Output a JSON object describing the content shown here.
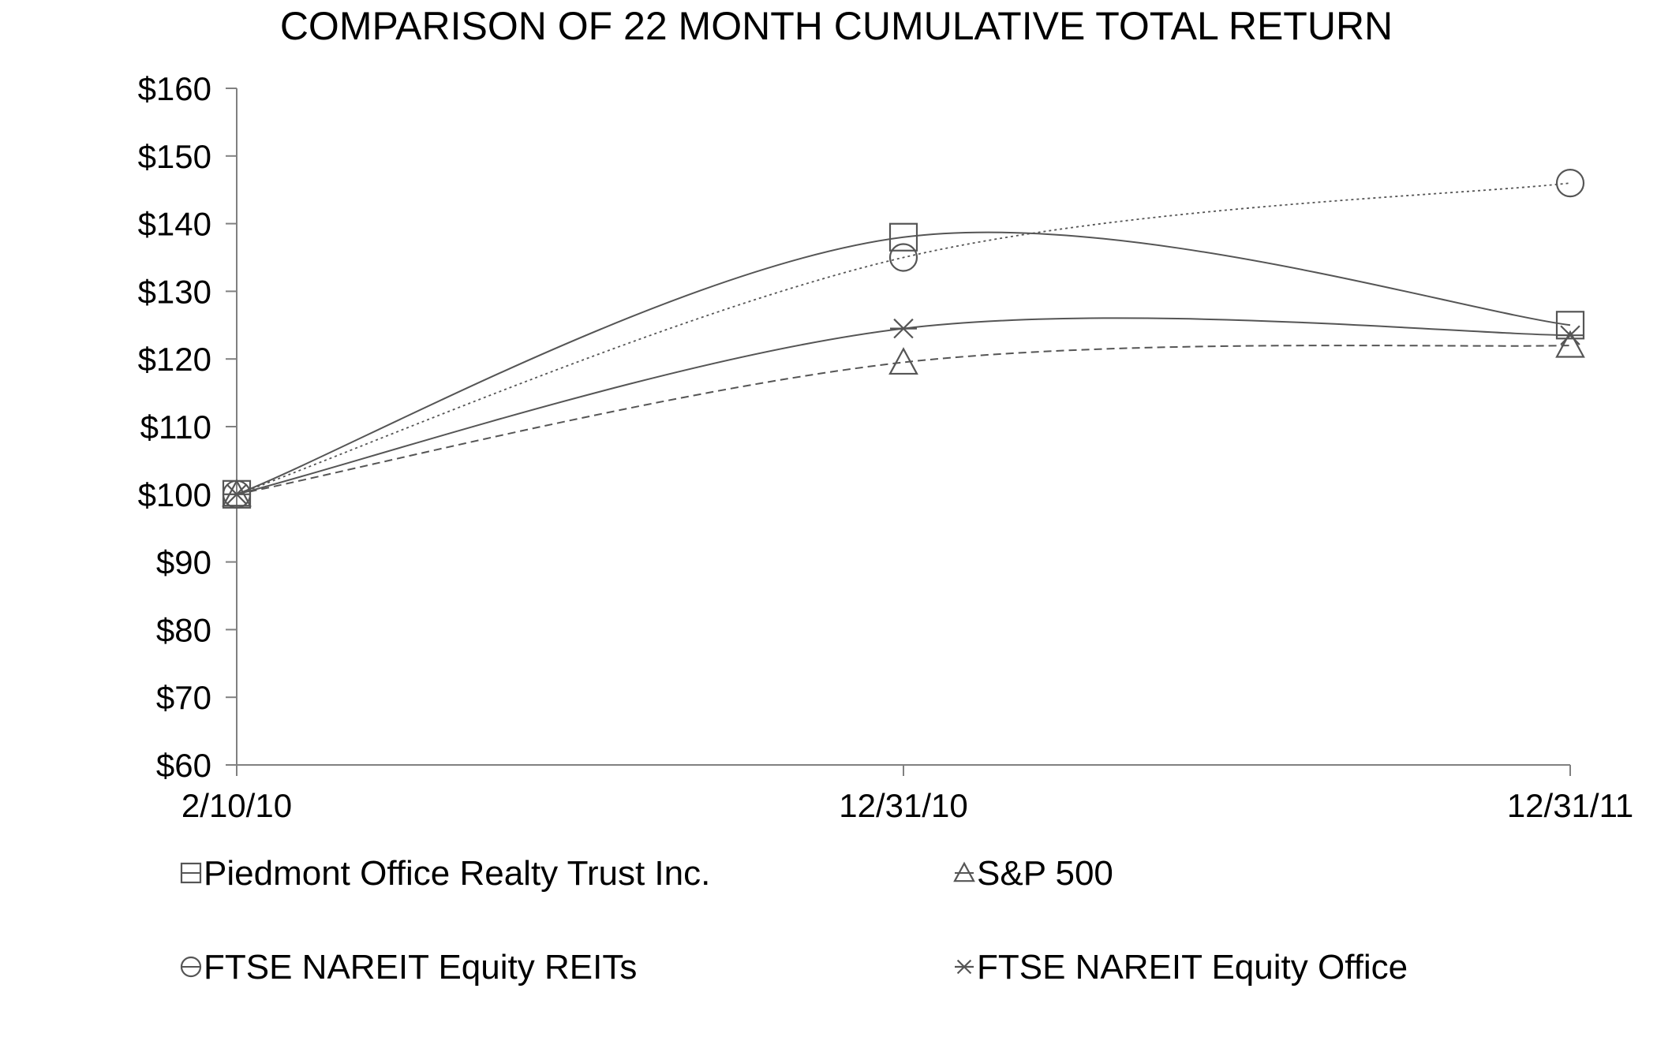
{
  "chart_data": {
    "type": "line",
    "title": "COMPARISON OF 22 MONTH CUMULATIVE TOTAL RETURN",
    "categories": [
      "2/10/10",
      "12/31/10",
      "12/31/11"
    ],
    "ylim": [
      60,
      160
    ],
    "yticks": [
      60,
      70,
      80,
      90,
      100,
      110,
      120,
      130,
      140,
      150,
      160
    ],
    "ytick_labels": [
      "$60",
      "$70",
      "$80",
      "$90",
      "$100",
      "$110",
      "$120",
      "$130",
      "$140",
      "$150",
      "$160"
    ],
    "series": [
      {
        "name": "Piedmont Office Realty Trust Inc.",
        "marker": "square",
        "line": "solid",
        "color": "#555555",
        "values": [
          100,
          138,
          125
        ]
      },
      {
        "name": "S&P 500",
        "marker": "triangle",
        "line": "dashed",
        "color": "#555555",
        "values": [
          100,
          119.5,
          122
        ]
      },
      {
        "name": "FTSE NAREIT Equity REITs",
        "marker": "circle",
        "line": "dotted",
        "color": "#555555",
        "values": [
          100,
          135,
          146
        ]
      },
      {
        "name": "FTSE NAREIT Equity Office",
        "marker": "asterisk",
        "line": "solid",
        "color": "#555555",
        "values": [
          100,
          124.5,
          123.5
        ]
      }
    ],
    "legend_position": "bottom",
    "grid": false
  }
}
